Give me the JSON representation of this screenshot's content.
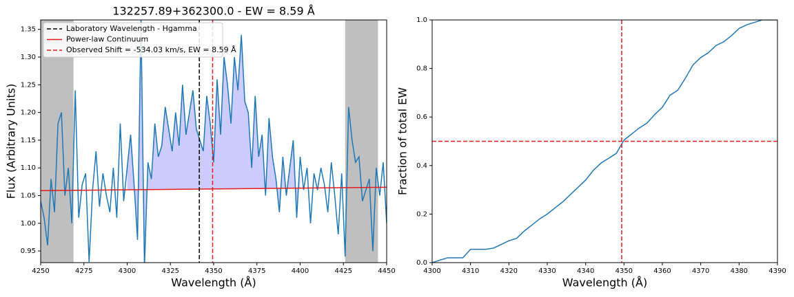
{
  "chart_data": [
    {
      "type": "line",
      "title": "132257.89+362300.0 - EW = 8.59 Å",
      "xlabel": "Wavelength (Å)",
      "ylabel": "Flux (Arbitrary Units)",
      "xlim": [
        4250,
        4450
      ],
      "ylim": [
        0.929,
        1.367
      ],
      "xticks": [
        4250,
        4275,
        4300,
        4325,
        4350,
        4375,
        4400,
        4425,
        4450
      ],
      "yticks": [
        0.95,
        {
          "value": 1.0,
          "label": "1.00"
        },
        1.05,
        {
          "value": 1.1,
          "label": "1.10"
        },
        1.15,
        {
          "value": 1.2,
          "label": "1.20"
        },
        1.25,
        {
          "value": 1.3,
          "label": "1.30"
        },
        1.35
      ],
      "shaded_regions": [
        [
          4250,
          4269
        ],
        [
          4426,
          4445
        ]
      ],
      "shade_color": "#bfbfbf",
      "fill_range": [
        4300,
        4400
      ],
      "fill_color": "#ccccff",
      "legend": "upper left",
      "x": [
        4250,
        4252,
        4254,
        4256,
        4258,
        4260,
        4262,
        4264,
        4266,
        4268,
        4270,
        4272,
        4274,
        4276,
        4278,
        4280,
        4282,
        4284,
        4286,
        4288,
        4290,
        4292,
        4294,
        4296,
        4298,
        4300,
        4302,
        4304,
        4306,
        4308,
        4310,
        4312,
        4314,
        4316,
        4318,
        4320,
        4322,
        4324,
        4326,
        4328,
        4330,
        4332,
        4334,
        4336,
        4338,
        4340,
        4342,
        4344,
        4346,
        4348,
        4350,
        4352,
        4354,
        4356,
        4358,
        4360,
        4362,
        4364,
        4366,
        4368,
        4370,
        4372,
        4374,
        4376,
        4378,
        4380,
        4382,
        4384,
        4386,
        4388,
        4390,
        4392,
        4394,
        4396,
        4398,
        4400,
        4402,
        4404,
        4406,
        4408,
        4410,
        4412,
        4414,
        4416,
        4418,
        4420,
        4422,
        4424,
        4426,
        4428,
        4430,
        4432,
        4434,
        4436,
        4438,
        4440,
        4442,
        4444,
        4446,
        4448,
        4450
      ],
      "series": [
        {
          "color": "#1f77b4",
          "values": [
            1.04,
            1.01,
            0.96,
            1.08,
            1.02,
            1.18,
            1.2,
            1.05,
            1.1,
            1.0,
            1.24,
            1.01,
            1.07,
            1.09,
            0.93,
            1.06,
            1.13,
            1.03,
            1.09,
            1.05,
            1.02,
            1.1,
            1.01,
            1.18,
            1.04,
            1.1,
            1.16,
            1.07,
            0.97,
            1.37,
            0.92,
            1.11,
            1.08,
            1.18,
            1.12,
            1.14,
            1.21,
            1.17,
            1.13,
            1.2,
            1.14,
            1.25,
            1.16,
            1.2,
            1.24,
            1.17,
            1.15,
            1.13,
            1.23,
            1.18,
            1.11,
            1.26,
            1.16,
            1.3,
            1.25,
            1.18,
            1.3,
            1.24,
            1.34,
            1.22,
            1.2,
            1.1,
            1.23,
            1.12,
            1.16,
            1.05,
            1.19,
            1.12,
            1.08,
            1.02,
            1.12,
            1.05,
            1.1,
            1.15,
            1.01,
            1.12,
            1.06,
            1.1,
            1.0,
            1.09,
            1.06,
            1.1,
            1.07,
            1.02,
            1.11,
            1.05,
            0.98,
            1.09,
            0.94,
            1.21,
            1.15,
            1.11,
            1.12,
            1.04,
            1.06,
            1.08,
            0.95,
            1.1,
            1.05,
            1.11,
            1.0
          ]
        },
        {
          "name": "Power-law Continuum",
          "color": "#e41a1c",
          "x": [
            4250,
            4450
          ],
          "values": [
            1.059,
            1.065
          ]
        }
      ],
      "vlines": [
        {
          "name": "Laboratory Wavelength - Hgamma",
          "x": 4341.7,
          "color": "#000000",
          "linestyle": "dashed"
        },
        {
          "name": "Observed Shift = -534.03 km/s, EW = 8.59 Å",
          "x": 4349.4,
          "color": "#e41a1c",
          "linestyle": "dashed"
        }
      ]
    },
    {
      "type": "line",
      "xlabel": "Wavelength (Å)",
      "ylabel": "Fraction of total EW",
      "xlim": [
        4300,
        4390
      ],
      "ylim": [
        0,
        1
      ],
      "xticks": [
        4300,
        4310,
        4320,
        4330,
        4340,
        4350,
        4360,
        4370,
        4380,
        4390
      ],
      "yticks": [
        {
          "value": 0,
          "label": "0.0"
        },
        0.2,
        0.4,
        0.6,
        0.8,
        {
          "value": 1,
          "label": "1.0"
        }
      ],
      "x": [
        4300,
        4302,
        4304,
        4306,
        4308,
        4310,
        4312,
        4314,
        4316,
        4318,
        4320,
        4322,
        4324,
        4326,
        4328,
        4330,
        4332,
        4334,
        4336,
        4338,
        4340,
        4342,
        4344,
        4346,
        4348,
        4350,
        4352,
        4354,
        4356,
        4358,
        4360,
        4362,
        4364,
        4366,
        4368,
        4370,
        4372,
        4374,
        4376,
        4378,
        4380,
        4382,
        4384,
        4386,
        4388,
        4390
      ],
      "series": [
        {
          "color": "#1f77b4",
          "values": [
            0,
            0.01,
            0.02,
            0.02,
            0.02,
            0.055,
            0.055,
            0.055,
            0.06,
            0.075,
            0.09,
            0.1,
            0.13,
            0.155,
            0.18,
            0.2,
            0.225,
            0.25,
            0.28,
            0.31,
            0.34,
            0.38,
            0.41,
            0.43,
            0.45,
            0.505,
            0.53,
            0.555,
            0.575,
            0.61,
            0.64,
            0.69,
            0.71,
            0.76,
            0.815,
            0.845,
            0.865,
            0.895,
            0.91,
            0.935,
            0.965,
            0.98,
            0.99,
            1.0,
            1.0,
            1.0
          ]
        }
      ],
      "vlines": [
        {
          "x": 4349.4,
          "color": "#e41a1c",
          "linestyle": "dashed"
        }
      ],
      "hlines": [
        {
          "y": 0.5,
          "color": "#e41a1c",
          "linestyle": "dashed"
        }
      ]
    }
  ]
}
